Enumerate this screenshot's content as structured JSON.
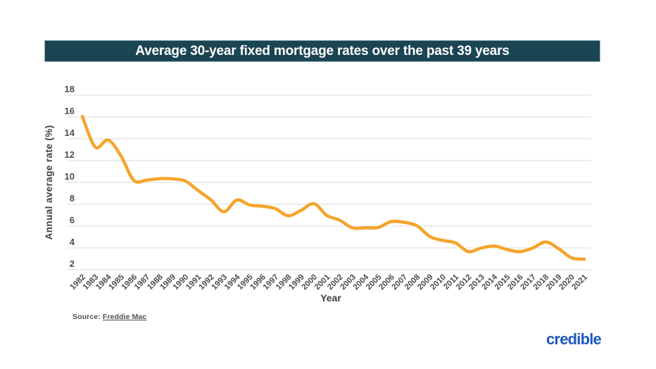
{
  "header": {
    "title": "Average 30-year fixed mortgage rates over the past 39 years",
    "background": "#1B4552",
    "text_color": "#FFFFFF"
  },
  "chart_data": {
    "type": "line",
    "title": "Average 30-year fixed mortgage rates over the past 39 years",
    "xlabel": "Year",
    "ylabel": "Annual average rate (%)",
    "x": [
      1982,
      1983,
      1984,
      1985,
      1986,
      1987,
      1988,
      1989,
      1990,
      1991,
      1992,
      1993,
      1994,
      1995,
      1996,
      1997,
      1998,
      1999,
      2000,
      2001,
      2002,
      2003,
      2004,
      2005,
      2006,
      2007,
      2008,
      2009,
      2010,
      2011,
      2012,
      2013,
      2014,
      2015,
      2016,
      2017,
      2018,
      2019,
      2020,
      2021
    ],
    "series": [
      {
        "name": "Average 30-year fixed mortgage rate (%)",
        "values": [
          16.04,
          13.24,
          13.88,
          12.43,
          10.19,
          10.21,
          10.34,
          10.32,
          10.13,
          9.25,
          8.39,
          7.31,
          8.38,
          7.93,
          7.81,
          7.6,
          6.94,
          7.44,
          8.05,
          6.97,
          6.54,
          5.83,
          5.84,
          5.87,
          6.41,
          6.34,
          6.03,
          5.04,
          4.69,
          4.45,
          3.66,
          3.98,
          4.17,
          3.85,
          3.65,
          3.99,
          4.54,
          3.94,
          3.1,
          2.96
        ]
      }
    ],
    "yticks": [
      2,
      4,
      6,
      8,
      10,
      12,
      14,
      16,
      18
    ],
    "ylim": [
      2,
      18
    ],
    "grid": true,
    "legend": "none",
    "line_color": "#F5A42C",
    "gridline_color": "#E2E2E2",
    "tick_label_color": "#4D4D4D",
    "axis_title_color": "#3F3F3F"
  },
  "footer": {
    "source_prefix": "Source: ",
    "source_link": "Freddie Mac",
    "logo_text": "credible",
    "logo_color": "#1D59BC"
  }
}
